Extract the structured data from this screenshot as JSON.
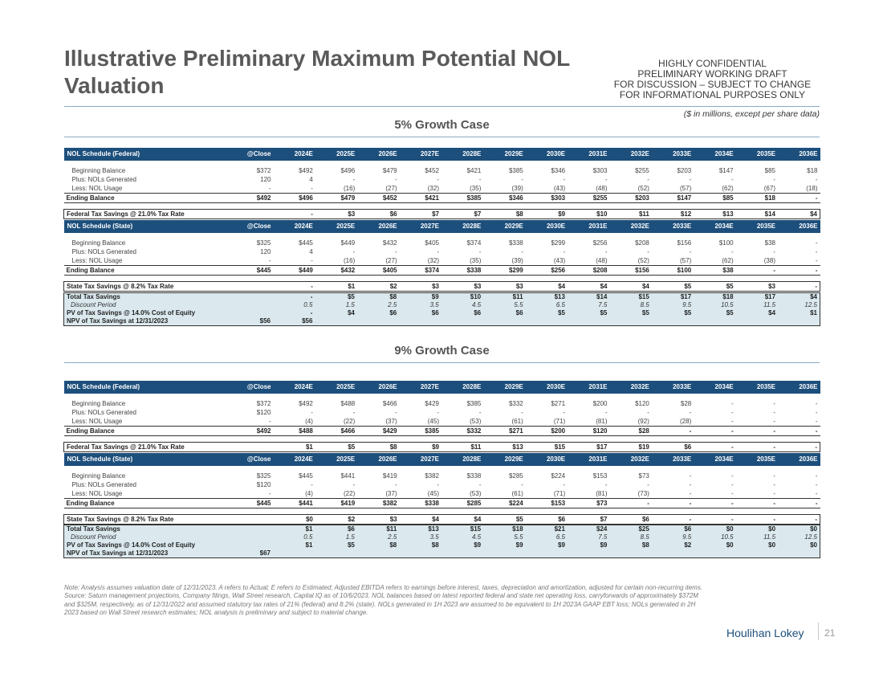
{
  "title": "Illustrative Preliminary Maximum Potential NOL Valuation",
  "confidential": [
    "HIGHLY CONFIDENTIAL",
    "PRELIMINARY WORKING DRAFT",
    "FOR DISCUSSION – SUBJECT TO CHANGE",
    "FOR INFORMATIONAL PURPOSES ONLY"
  ],
  "units": "($ in millions, except per share data)",
  "years": [
    "@Close",
    "2024E",
    "2025E",
    "2026E",
    "2027E",
    "2028E",
    "2029E",
    "2030E",
    "2031E",
    "2032E",
    "2033E",
    "2034E",
    "2035E",
    "2036E"
  ],
  "cases": [
    {
      "title": "5% Growth Case",
      "federal": {
        "header": "NOL Schedule (Federal)",
        "rows": [
          {
            "label": "Beginning Balance",
            "values": [
              "$372",
              "$492",
              "$496",
              "$479",
              "$452",
              "$421",
              "$385",
              "$346",
              "$303",
              "$255",
              "$203",
              "$147",
              "$85",
              "$18"
            ]
          },
          {
            "label": "Plus: NOLs Generated",
            "values": [
              "120",
              "4",
              "-",
              "-",
              "-",
              "-",
              "-",
              "-",
              "-",
              "-",
              "-",
              "-",
              "-",
              "-"
            ]
          },
          {
            "label": "Less: NOL Usage",
            "values": [
              "-",
              "-",
              "(16)",
              "(27)",
              "(32)",
              "(35)",
              "(39)",
              "(43)",
              "(48)",
              "(52)",
              "(57)",
              "(62)",
              "(67)",
              "(18)"
            ]
          }
        ],
        "ending": {
          "label": "Ending Balance",
          "values": [
            "$492",
            "$496",
            "$479",
            "$452",
            "$421",
            "$385",
            "$346",
            "$303",
            "$255",
            "$203",
            "$147",
            "$85",
            "$18",
            "-"
          ]
        },
        "tax": {
          "label": "Federal Tax Savings @ 21.0% Tax Rate",
          "values": [
            "",
            "-",
            "$3",
            "$6",
            "$7",
            "$7",
            "$8",
            "$9",
            "$10",
            "$11",
            "$12",
            "$13",
            "$14",
            "$4"
          ]
        }
      },
      "state": {
        "header": "NOL Schedule (State)",
        "rows": [
          {
            "label": "Beginning Balance",
            "values": [
              "$325",
              "$445",
              "$449",
              "$432",
              "$405",
              "$374",
              "$338",
              "$299",
              "$256",
              "$208",
              "$156",
              "$100",
              "$38",
              "-"
            ]
          },
          {
            "label": "Plus: NOLs Generated",
            "values": [
              "120",
              "4",
              "-",
              "-",
              "-",
              "-",
              "-",
              "-",
              "-",
              "-",
              "-",
              "-",
              "-",
              "-"
            ]
          },
          {
            "label": "Less: NOL Usage",
            "values": [
              "-",
              "-",
              "(16)",
              "(27)",
              "(32)",
              "(35)",
              "(39)",
              "(43)",
              "(48)",
              "(52)",
              "(57)",
              "(62)",
              "(38)",
              "-"
            ]
          }
        ],
        "ending": {
          "label": "Ending Balance",
          "values": [
            "$445",
            "$449",
            "$432",
            "$405",
            "$374",
            "$338",
            "$299",
            "$256",
            "$208",
            "$156",
            "$100",
            "$38",
            "-",
            "-"
          ]
        },
        "tax": {
          "label": "State Tax Savings @ 8.2% Tax Rate",
          "values": [
            "",
            "-",
            "$1",
            "$2",
            "$3",
            "$3",
            "$3",
            "$4",
            "$4",
            "$4",
            "$5",
            "$5",
            "$3",
            "-"
          ]
        }
      },
      "summary": [
        {
          "label": "Total Tax Savings",
          "style": "bold",
          "values": [
            "",
            "-",
            "$5",
            "$8",
            "$9",
            "$10",
            "$11",
            "$13",
            "$14",
            "$15",
            "$17",
            "$18",
            "$17",
            "$4"
          ]
        },
        {
          "label": "Discount Period",
          "style": "italic",
          "values": [
            "",
            "0.5",
            "1.5",
            "2.5",
            "3.5",
            "4.5",
            "5.5",
            "6.5",
            "7.5",
            "8.5",
            "9.5",
            "10.5",
            "11.5",
            "12.5"
          ]
        },
        {
          "label": "PV of Tax Savings @ 14.0% Cost of Equity",
          "style": "bold",
          "values": [
            "",
            "-",
            "$4",
            "$6",
            "$6",
            "$6",
            "$6",
            "$5",
            "$5",
            "$5",
            "$5",
            "$5",
            "$4",
            "$1"
          ]
        },
        {
          "label": "NPV of Tax Savings at 12/31/2023",
          "style": "bold",
          "values": [
            "$56",
            "$56",
            "",
            "",
            "",
            "",
            "",
            "",
            "",
            "",
            "",
            "",
            "",
            ""
          ]
        }
      ]
    },
    {
      "title": "9% Growth Case",
      "federal": {
        "header": "NOL Schedule (Federal)",
        "rows": [
          {
            "label": "Beginning Balance",
            "values": [
              "$372",
              "$492",
              "$488",
              "$466",
              "$429",
              "$385",
              "$332",
              "$271",
              "$200",
              "$120",
              "$28",
              "-",
              "-",
              "-"
            ]
          },
          {
            "label": "Plus: NOLs Generated",
            "values": [
              "$120",
              "-",
              "-",
              "-",
              "-",
              "-",
              "-",
              "-",
              "-",
              "-",
              "-",
              "-",
              "-",
              "-"
            ]
          },
          {
            "label": "Less: NOL Usage",
            "values": [
              "-",
              "(4)",
              "(22)",
              "(37)",
              "(45)",
              "(53)",
              "(61)",
              "(71)",
              "(81)",
              "(92)",
              "(28)",
              "-",
              "-",
              "-"
            ]
          }
        ],
        "ending": {
          "label": "Ending Balance",
          "values": [
            "$492",
            "$488",
            "$466",
            "$429",
            "$385",
            "$332",
            "$271",
            "$200",
            "$120",
            "$28",
            "-",
            "-",
            "-",
            "-"
          ]
        },
        "tax": {
          "label": "Federal Tax Savings @ 21.0% Tax Rate",
          "values": [
            "",
            "$1",
            "$5",
            "$8",
            "$9",
            "$11",
            "$13",
            "$15",
            "$17",
            "$19",
            "$6",
            "-",
            "-",
            "-"
          ]
        }
      },
      "state": {
        "header": "NOL Schedule (State)",
        "rows": [
          {
            "label": "Beginning Balance",
            "values": [
              "$325",
              "$445",
              "$441",
              "$419",
              "$382",
              "$338",
              "$285",
              "$224",
              "$153",
              "$73",
              "-",
              "-",
              "-",
              "-"
            ]
          },
          {
            "label": "Plus: NOLs Generated",
            "values": [
              "$120",
              "-",
              "-",
              "-",
              "-",
              "-",
              "-",
              "-",
              "-",
              "-",
              "-",
              "-",
              "-",
              "-"
            ]
          },
          {
            "label": "Less: NOL Usage",
            "values": [
              "-",
              "(4)",
              "(22)",
              "(37)",
              "(45)",
              "(53)",
              "(61)",
              "(71)",
              "(81)",
              "(73)",
              "-",
              "-",
              "-",
              "-"
            ]
          }
        ],
        "ending": {
          "label": "Ending Balance",
          "values": [
            "$445",
            "$441",
            "$419",
            "$382",
            "$338",
            "$285",
            "$224",
            "$153",
            "$73",
            "-",
            "-",
            "-",
            "-",
            "-"
          ]
        },
        "tax": {
          "label": "State Tax Savings @ 8.2% Tax Rate",
          "values": [
            "",
            "$0",
            "$2",
            "$3",
            "$4",
            "$4",
            "$5",
            "$6",
            "$7",
            "$6",
            "-",
            "-",
            "-",
            "-"
          ]
        }
      },
      "summary": [
        {
          "label": "Total Tax Savings",
          "style": "bold",
          "values": [
            "",
            "$1",
            "$6",
            "$11",
            "$13",
            "$15",
            "$18",
            "$21",
            "$24",
            "$25",
            "$6",
            "$0",
            "$0",
            "$0"
          ]
        },
        {
          "label": "Discount Period",
          "style": "italic",
          "values": [
            "",
            "0.5",
            "1.5",
            "2.5",
            "3.5",
            "4.5",
            "5.5",
            "6.5",
            "7.5",
            "8.5",
            "9.5",
            "10.5",
            "11.5",
            "12.5"
          ]
        },
        {
          "label": "PV of Tax Savings @ 14.0% Cost of Equity",
          "style": "bold",
          "values": [
            "",
            "$1",
            "$5",
            "$8",
            "$8",
            "$9",
            "$9",
            "$9",
            "$9",
            "$8",
            "$2",
            "$0",
            "$0",
            "$0"
          ]
        },
        {
          "label": "NPV of Tax Savings at 12/31/2023",
          "style": "bold",
          "values": [
            "$67",
            "",
            "",
            "",
            "",
            "",
            "",
            "",
            "",
            "",
            "",
            "",
            "",
            ""
          ]
        }
      ]
    }
  ],
  "note": "Note: Analysis assumes valuation date of 12/31/2023. A refers to Actual; E refers to Estimated; Adjusted EBITDA refers to earnings before interest, taxes, depreciation and amortization, adjusted for certain non-recurring items.",
  "source": "Source: Saturn management projections, Company filings, Wall Street research, Capital IQ as of 10/6/2023. NOL balances based on latest reported federal and state net operating loss, carryforwards of approximately $372M and $325M, respectively, as of 12/31/2022 and assumed statutory tax rates of 21% (federal) and 8.2% (state). NOLs generated in 1H 2023 are assumed to be equivalent to 1H 2023A GAAP EBT loss; NOLs generated in 2H 2023 based on Wall Street research estimates; NOL analysis is preliminary and subject to material change.",
  "brand": "Houlihan Lokey",
  "page_number": "21"
}
